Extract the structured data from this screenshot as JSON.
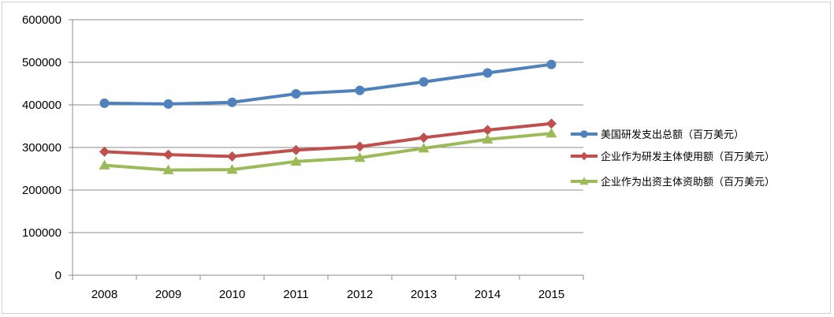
{
  "chart_data": {
    "type": "line",
    "title": "",
    "xlabel": "",
    "ylabel": "",
    "categories": [
      "2008",
      "2009",
      "2010",
      "2011",
      "2012",
      "2013",
      "2014",
      "2015"
    ],
    "ylim": [
      0,
      600000
    ],
    "yticks": [
      "0",
      "100000",
      "200000",
      "300000",
      "400000",
      "500000",
      "600000"
    ],
    "grid": "horizontal",
    "legend_position": "right",
    "series": [
      {
        "name": "美国研发支出总额（百万美元）",
        "values": [
          404000,
          402000,
          406000,
          426000,
          434000,
          454000,
          475000,
          495000
        ],
        "color": "#4F81BD",
        "marker": "circle"
      },
      {
        "name": "企业作为研发主体使用额（百万美元）",
        "values": [
          290000,
          283000,
          279000,
          294000,
          302000,
          323000,
          341000,
          356000
        ],
        "color": "#C0504D",
        "marker": "diamond"
      },
      {
        "name": "企业作为出资主体资助额（百万美元）",
        "values": [
          258000,
          247000,
          248000,
          267000,
          276000,
          298000,
          319000,
          333000
        ],
        "color": "#9BBB59",
        "marker": "triangle"
      }
    ]
  }
}
